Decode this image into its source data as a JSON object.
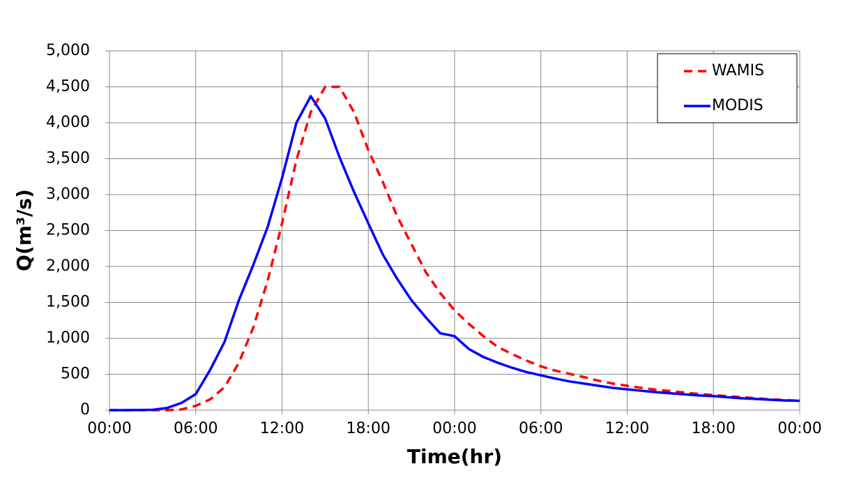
{
  "chart_data": {
    "type": "line",
    "x_label": "Time(hr)",
    "y_label": "Q(m³/s)",
    "x": [
      0,
      1,
      2,
      3,
      4,
      5,
      6,
      7,
      8,
      9,
      10,
      11,
      12,
      13,
      14,
      15,
      16,
      17,
      18,
      19,
      20,
      21,
      22,
      23,
      24,
      25,
      26,
      27,
      28,
      29,
      30,
      31,
      32,
      33,
      34,
      35,
      36,
      37,
      38,
      39,
      40,
      41,
      42,
      43,
      44,
      45,
      46,
      47,
      48
    ],
    "series": [
      {
        "name": "WAMIS",
        "color": "#ff0000",
        "dashed": true,
        "values": [
          0,
          0,
          0,
          0,
          0,
          10,
          60,
          150,
          320,
          660,
          1150,
          1800,
          2600,
          3480,
          4150,
          4500,
          4500,
          4150,
          3620,
          3180,
          2700,
          2310,
          1920,
          1630,
          1390,
          1200,
          1030,
          880,
          780,
          690,
          610,
          550,
          505,
          460,
          410,
          370,
          340,
          310,
          285,
          265,
          245,
          225,
          210,
          195,
          180,
          165,
          150,
          140,
          130
        ]
      },
      {
        "name": "MODIS",
        "color": "#0000ff",
        "dashed": false,
        "values": [
          0,
          0,
          2,
          5,
          30,
          100,
          223,
          560,
          950,
          1530,
          2020,
          2550,
          3230,
          4000,
          4370,
          4060,
          3520,
          3040,
          2600,
          2170,
          1830,
          1530,
          1290,
          1070,
          1030,
          850,
          740,
          660,
          590,
          530,
          485,
          440,
          400,
          370,
          340,
          310,
          290,
          270,
          250,
          235,
          220,
          205,
          195,
          180,
          165,
          155,
          145,
          135,
          130
        ]
      }
    ],
    "xlim": [
      0,
      48
    ],
    "xticks": [
      {
        "value": 0,
        "label": "00:00"
      },
      {
        "value": 6,
        "label": "06:00"
      },
      {
        "value": 12,
        "label": "12:00"
      },
      {
        "value": 18,
        "label": "18:00"
      },
      {
        "value": 24,
        "label": "00:00"
      },
      {
        "value": 30,
        "label": "06:00"
      },
      {
        "value": 36,
        "label": "12:00"
      },
      {
        "value": 42,
        "label": "18:00"
      },
      {
        "value": 48,
        "label": "00:00"
      }
    ],
    "ylim": [
      0,
      5000
    ],
    "yticks": [
      0,
      500,
      {
        "value": 1000,
        "label": "1,000"
      },
      {
        "value": 1500,
        "label": "1,500"
      },
      {
        "value": 2000,
        "label": "2,000"
      },
      {
        "value": 2500,
        "label": "2,500"
      },
      {
        "value": 3000,
        "label": "3,000"
      },
      {
        "value": 3500,
        "label": "3,500"
      },
      {
        "value": 4000,
        "label": "4,000"
      },
      {
        "value": 4500,
        "label": "4,500"
      },
      {
        "value": 5000,
        "label": "5,000"
      }
    ],
    "grid": true,
    "legend": "upper right"
  }
}
